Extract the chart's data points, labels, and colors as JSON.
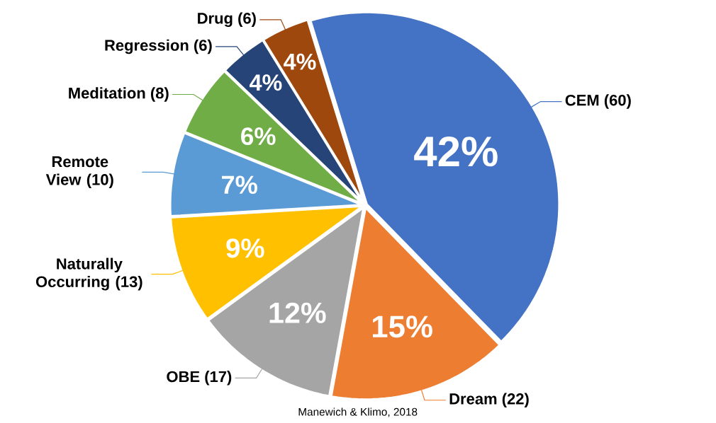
{
  "chart_data": {
    "type": "pie",
    "categories": [
      "CEM (60)",
      "Dream (22)",
      "OBE (17)",
      "Naturally Occurring (13)",
      "Remote View (10)",
      "Meditation (8)",
      "Regression (6)",
      "Drug (6)"
    ],
    "values": [
      42,
      15,
      12,
      9,
      7,
      6,
      4,
      4
    ],
    "colors": [
      "#4472c4",
      "#ed7d31",
      "#a5a5a5",
      "#ffc000",
      "#5b9bd5",
      "#70ad47",
      "#264478",
      "#9e480e"
    ],
    "value_labels": [
      "42%",
      "15%",
      "12%",
      "9%",
      "7%",
      "6%",
      "4%",
      "4%"
    ],
    "annotations": [
      "Manewich & Klimo, 2018"
    ]
  }
}
